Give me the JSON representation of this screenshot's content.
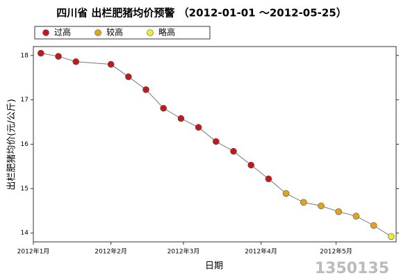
{
  "chart_data": {
    "type": "line",
    "title": "四川省 出栏肥猪均价预警 （2012-01-01 ～2012-05-25）",
    "x_label": "日期",
    "y_label": "出栏肥猪均价(元/公斤)",
    "legend": [
      {
        "name": "过高",
        "color": "#c8161d"
      },
      {
        "name": "较高",
        "color": "#e3a21a"
      },
      {
        "name": "略高",
        "color": "#e8ee2a"
      }
    ],
    "x": [
      3,
      10,
      17,
      31,
      38,
      45,
      52,
      59,
      66,
      73,
      80,
      87,
      94,
      101,
      108,
      115,
      122,
      129,
      136,
      143
    ],
    "values": [
      18.05,
      17.98,
      17.86,
      17.8,
      17.52,
      17.23,
      16.81,
      16.58,
      16.38,
      16.06,
      15.84,
      15.53,
      15.22,
      14.89,
      14.69,
      14.61,
      14.48,
      14.38,
      14.17,
      13.92
    ],
    "point_levels": [
      0,
      0,
      0,
      0,
      0,
      0,
      0,
      0,
      0,
      0,
      0,
      0,
      0,
      1,
      1,
      1,
      1,
      1,
      1,
      2
    ],
    "line_color": "#777777",
    "xlim": [
      0,
      145
    ],
    "xticks": [
      {
        "value": 0,
        "label": "2012年1月"
      },
      {
        "value": 31,
        "label": "2012年2月"
      },
      {
        "value": 60,
        "label": "2012年3月"
      },
      {
        "value": 91,
        "label": "2012年4月"
      },
      {
        "value": 121,
        "label": "2012年5月"
      }
    ],
    "ylim": [
      13.8,
      18.2
    ],
    "yticks": [
      14,
      15,
      16,
      17,
      18
    ],
    "watermark": "1350135"
  }
}
